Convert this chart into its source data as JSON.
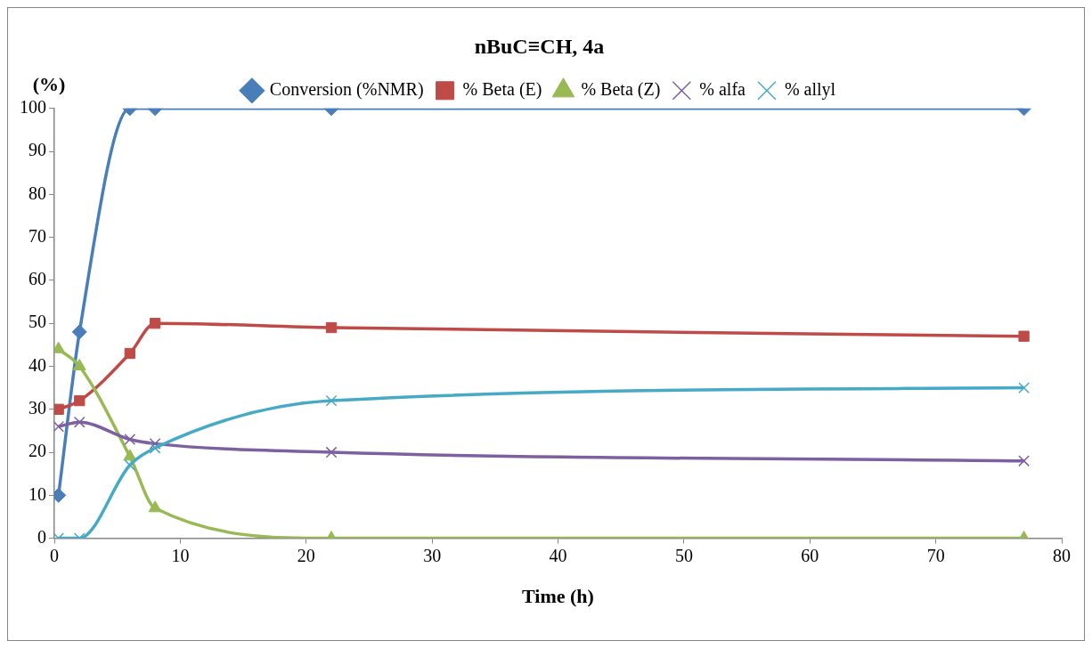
{
  "chart_data": {
    "type": "line",
    "title": "nBuC≡CH, 4a",
    "xlabel": "Time (h)",
    "ylabel": "(%)",
    "x": [
      0.33,
      2,
      6,
      8,
      22,
      77
    ],
    "series": [
      {
        "name": "Conversion (%NMR)",
        "color": "#4a7ebb",
        "marker": "diamond",
        "values": [
          10,
          48,
          100,
          100,
          100,
          100
        ]
      },
      {
        "name": "% Beta (E)",
        "color": "#be4b48",
        "marker": "square",
        "values": [
          30,
          32,
          43,
          50,
          49,
          47
        ]
      },
      {
        "name": "% Beta (Z)",
        "color": "#98b954",
        "marker": "triangle",
        "values": [
          44,
          40,
          19,
          7,
          0,
          0
        ]
      },
      {
        "name": "% alfa",
        "color": "#7d60a0",
        "marker": "cross",
        "values": [
          26,
          27,
          23,
          22,
          20,
          18
        ]
      },
      {
        "name": "% allyl",
        "color": "#46aac5",
        "marker": "cross",
        "values": [
          0,
          0,
          17,
          21,
          32,
          35
        ]
      }
    ],
    "xlim": [
      0,
      80
    ],
    "xticks": [
      0,
      10,
      20,
      30,
      40,
      50,
      60,
      70,
      80
    ],
    "ylim": [
      0,
      100
    ],
    "yticks": [
      0,
      10,
      20,
      30,
      40,
      50,
      60,
      70,
      80,
      90,
      100
    ],
    "grid": false,
    "legend": "top"
  }
}
